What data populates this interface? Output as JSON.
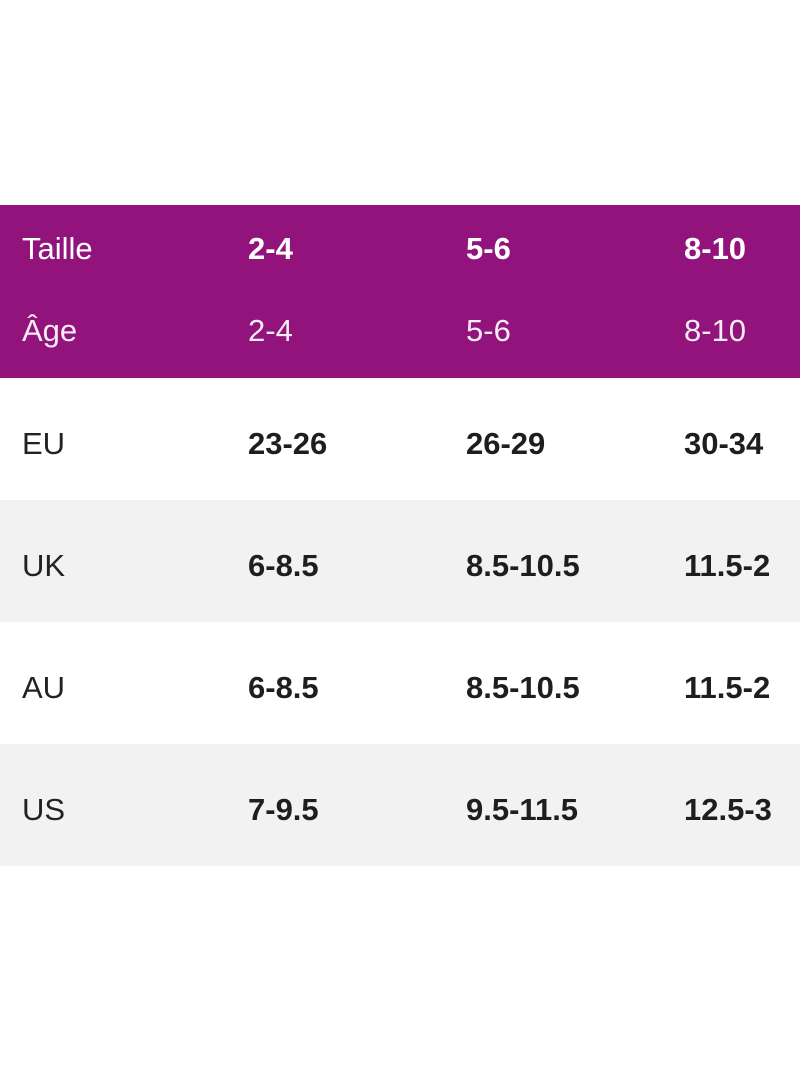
{
  "table": {
    "header": {
      "taille": {
        "label": "Taille",
        "values": [
          "2-4",
          "5-6",
          "8-10"
        ]
      },
      "age": {
        "label": "Âge",
        "values": [
          "2-4",
          "5-6",
          "8-10"
        ]
      }
    },
    "rows": [
      {
        "label": "EU",
        "values": [
          "23-26",
          "26-29",
          "30-34"
        ]
      },
      {
        "label": "UK",
        "values": [
          "6-8.5",
          "8.5-10.5",
          "11.5-2"
        ]
      },
      {
        "label": "AU",
        "values": [
          "6-8.5",
          "8.5-10.5",
          "11.5-2"
        ]
      },
      {
        "label": "US",
        "values": [
          "7-9.5",
          "9.5-11.5",
          "12.5-3"
        ]
      }
    ]
  },
  "colors": {
    "header_background": "#92137c",
    "header_text": "#ffffff",
    "alt_row_background": "#f2f2f2",
    "body_text": "#222222"
  }
}
